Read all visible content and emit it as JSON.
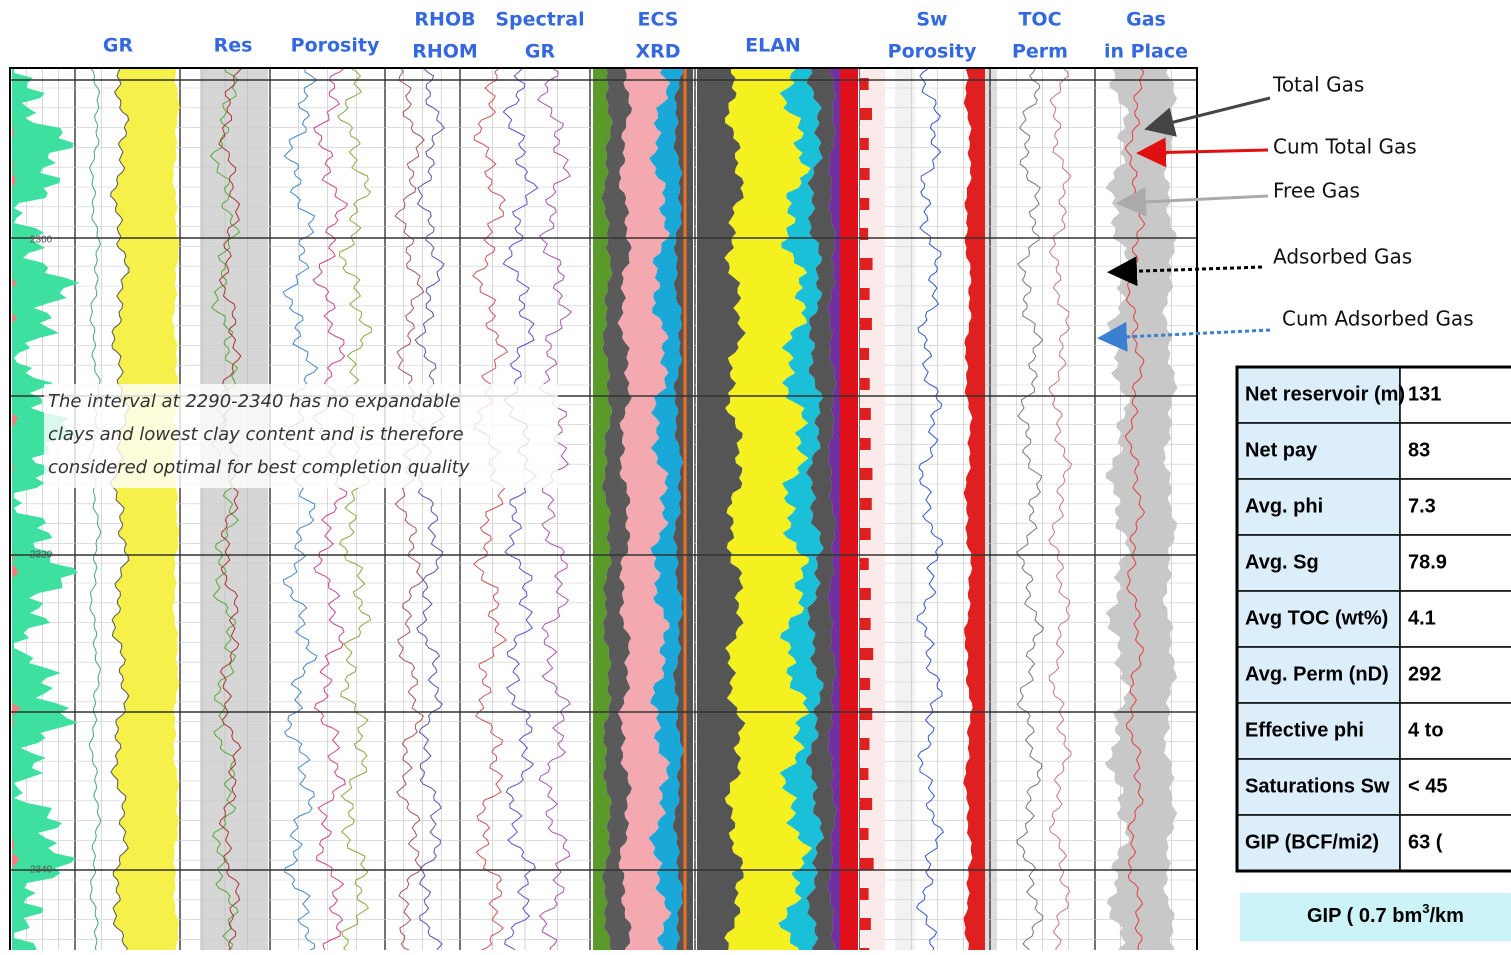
{
  "tracks": [
    {
      "lines": [
        "GR"
      ]
    },
    {
      "lines": [
        "Res"
      ]
    },
    {
      "lines": [
        "Porosity"
      ]
    },
    {
      "lines": [
        "RHOB",
        "RHOM"
      ]
    },
    {
      "lines": [
        "Spectral",
        "GR"
      ]
    },
    {
      "lines": [
        "ECS",
        "XRD"
      ]
    },
    {
      "lines": [
        "ELAN"
      ]
    },
    {
      "lines": [
        "Sw",
        "Porosity"
      ]
    },
    {
      "lines": [
        "TOC",
        "Perm"
      ]
    },
    {
      "lines": [
        "Gas",
        "in Place"
      ]
    }
  ],
  "depth_labels": [
    "2300",
    "2320",
    "2340"
  ],
  "gas_legend": [
    "Total Gas",
    "Cum Total Gas",
    "Free Gas",
    "Adsorbed Gas",
    "Cum Adsorbed Gas"
  ],
  "annotation": [
    "The interval at 2290-2340 has no expandable",
    "clays and lowest clay content and is therefore",
    "considered optimal for best completion quality"
  ],
  "summary_table": {
    "rows": [
      [
        "Net reservoir (m)",
        "131"
      ],
      [
        "Net pay",
        "83"
      ],
      [
        "Avg. phi",
        "7.3"
      ],
      [
        "Avg. Sg",
        "78.9"
      ],
      [
        "Avg TOC (wt%)",
        "4.1"
      ],
      [
        "Avg. Perm (nD)",
        "292"
      ],
      [
        "Effective phi",
        "4 to"
      ],
      [
        "Saturations Sw",
        "< 45"
      ],
      [
        "GIP (BCF/mi2)",
        "63 ("
      ]
    ]
  },
  "footer": {
    "text": "GIP ( 0.7 bm",
    "superscript": "3",
    "suffix": "/km"
  }
}
